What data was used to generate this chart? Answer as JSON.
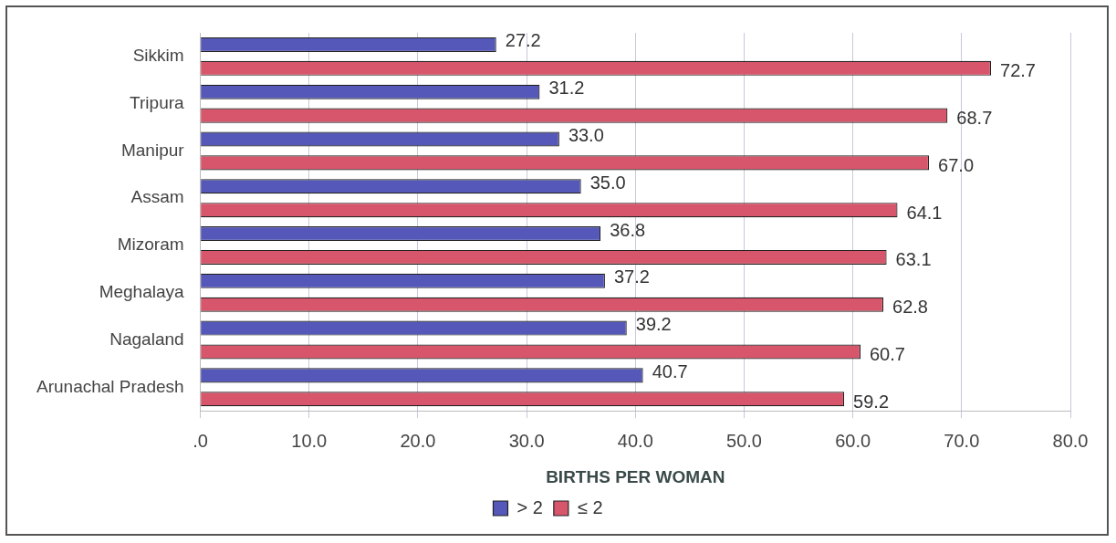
{
  "chart_data": {
    "type": "bar",
    "orientation": "horizontal",
    "xlabel": "BIRTHS PER WOMAN",
    "categories": [
      "Sikkim",
      "Tripura",
      "Manipur",
      "Assam",
      "Mizoram",
      "Meghalaya",
      "Nagaland",
      "Arunachal Pradesh"
    ],
    "series": [
      {
        "name": "> 2",
        "color": "#5558b8",
        "values": [
          27.2,
          31.2,
          33.0,
          35.0,
          36.8,
          37.2,
          39.2,
          40.7
        ],
        "value_labels": [
          "27.2",
          "31.2",
          "33.0",
          "35.0",
          "36.8",
          "37.2",
          "39.2",
          "40.7"
        ]
      },
      {
        "name": "≤ 2",
        "color": "#d8566c",
        "values": [
          72.7,
          68.7,
          67.0,
          64.1,
          63.1,
          62.8,
          60.7,
          59.2
        ],
        "value_labels": [
          "72.7",
          "68.7",
          "67.0",
          "64.1",
          "63.1",
          "62.8",
          "60.7",
          "59.2"
        ]
      }
    ],
    "xlim": [
      0,
      80
    ],
    "xticks": [
      {
        "value": 0,
        "label": ".0"
      },
      {
        "value": 10,
        "label": "10.0"
      },
      {
        "value": 20,
        "label": "20.0"
      },
      {
        "value": 30,
        "label": "30.0"
      },
      {
        "value": 40,
        "label": "40.0"
      },
      {
        "value": 50,
        "label": "50.0"
      },
      {
        "value": 60,
        "label": "60.0"
      },
      {
        "value": 70,
        "label": "70.0"
      },
      {
        "value": 80,
        "label": "80.0"
      }
    ],
    "grid": "x",
    "legend": "bottom"
  }
}
